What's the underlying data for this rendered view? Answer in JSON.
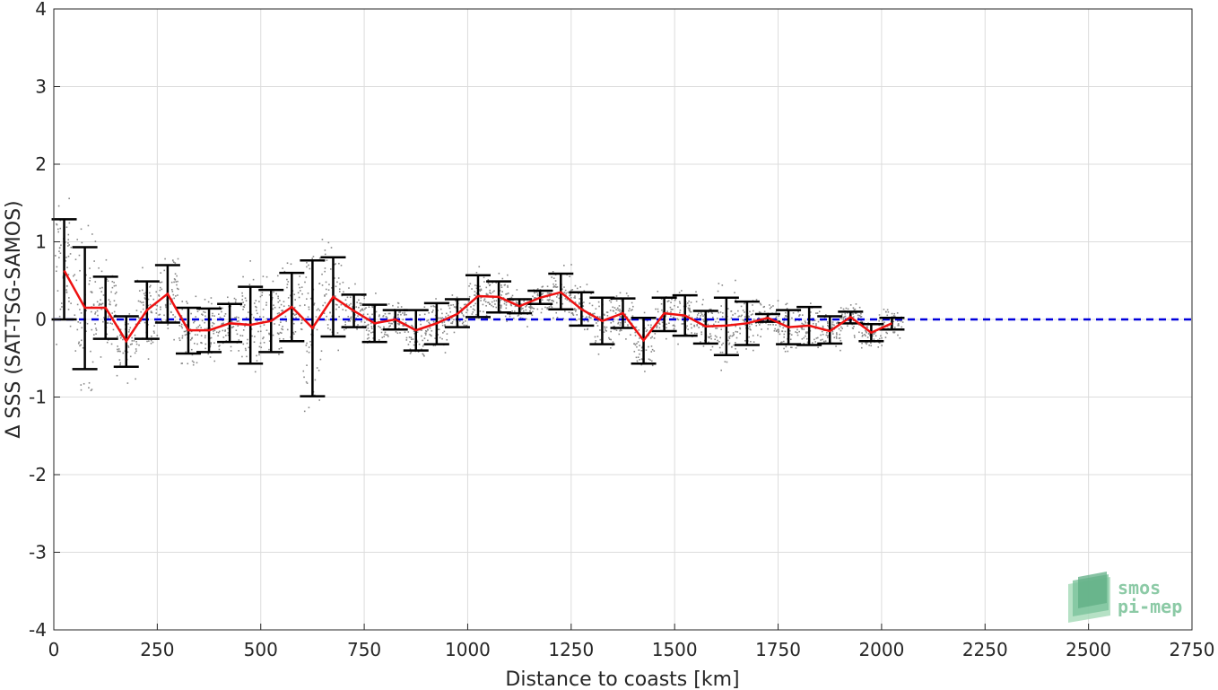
{
  "chart_data": {
    "type": "scatter",
    "xlabel": "Distance to coasts [km]",
    "ylabel": "Δ SSS (SAT-TSG-SAMOS)",
    "xlim": [
      0,
      2750
    ],
    "ylim": [
      -4,
      4
    ],
    "xticks": [
      0,
      250,
      500,
      750,
      1000,
      1250,
      1500,
      1750,
      2000,
      2250,
      2500,
      2750
    ],
    "yticks": [
      -4,
      -3,
      -2,
      -1,
      0,
      1,
      2,
      3,
      4
    ],
    "grid": true,
    "reference_line": {
      "y": 0,
      "style": "dashed",
      "color": "#0000dd"
    },
    "series": [
      {
        "kind": "binned_mean_with_errorbars",
        "color": "#ee1111",
        "x": [
          25,
          75,
          125,
          175,
          225,
          275,
          325,
          375,
          425,
          475,
          525,
          575,
          625,
          675,
          725,
          775,
          825,
          875,
          925,
          975,
          1025,
          1075,
          1125,
          1175,
          1225,
          1275,
          1325,
          1375,
          1425,
          1475,
          1525,
          1575,
          1625,
          1675,
          1725,
          1775,
          1825,
          1875,
          1925,
          1975,
          2025
        ],
        "mean": [
          0.63,
          0.15,
          0.15,
          -0.28,
          0.12,
          0.33,
          -0.14,
          -0.14,
          -0.05,
          -0.07,
          -0.02,
          0.16,
          -0.11,
          0.29,
          0.11,
          -0.05,
          0.0,
          -0.14,
          -0.05,
          0.07,
          0.3,
          0.29,
          0.17,
          0.28,
          0.35,
          0.13,
          -0.02,
          0.08,
          -0.27,
          0.08,
          0.05,
          -0.09,
          -0.08,
          -0.05,
          0.02,
          -0.1,
          -0.08,
          -0.15,
          0.03,
          -0.17,
          -0.05
        ],
        "lower": [
          0.0,
          -0.64,
          -0.25,
          -0.61,
          -0.25,
          -0.04,
          -0.44,
          -0.42,
          -0.29,
          -0.57,
          -0.42,
          -0.28,
          -0.99,
          -0.22,
          -0.1,
          -0.29,
          -0.13,
          -0.4,
          -0.32,
          -0.1,
          0.03,
          0.09,
          0.08,
          0.2,
          0.13,
          -0.08,
          -0.32,
          -0.11,
          -0.57,
          -0.15,
          -0.21,
          -0.31,
          -0.46,
          -0.33,
          -0.03,
          -0.32,
          -0.33,
          -0.31,
          -0.05,
          -0.28,
          -0.13
        ],
        "upper": [
          1.29,
          0.93,
          0.55,
          0.04,
          0.49,
          0.7,
          0.15,
          0.14,
          0.2,
          0.42,
          0.38,
          0.6,
          0.76,
          0.8,
          0.32,
          0.19,
          0.12,
          0.12,
          0.21,
          0.26,
          0.57,
          0.49,
          0.26,
          0.37,
          0.59,
          0.35,
          0.28,
          0.27,
          0.02,
          0.28,
          0.31,
          0.11,
          0.28,
          0.23,
          0.07,
          0.12,
          0.16,
          0.04,
          0.1,
          -0.06,
          0.02
        ]
      },
      {
        "kind": "raw_points",
        "color": "#888888",
        "x_range": [
          0,
          2050
        ],
        "extent": "about -2 to 2"
      }
    ]
  },
  "logo": {
    "line1": "smos",
    "line2": "pi-mep",
    "color": "#8ccaa6"
  }
}
